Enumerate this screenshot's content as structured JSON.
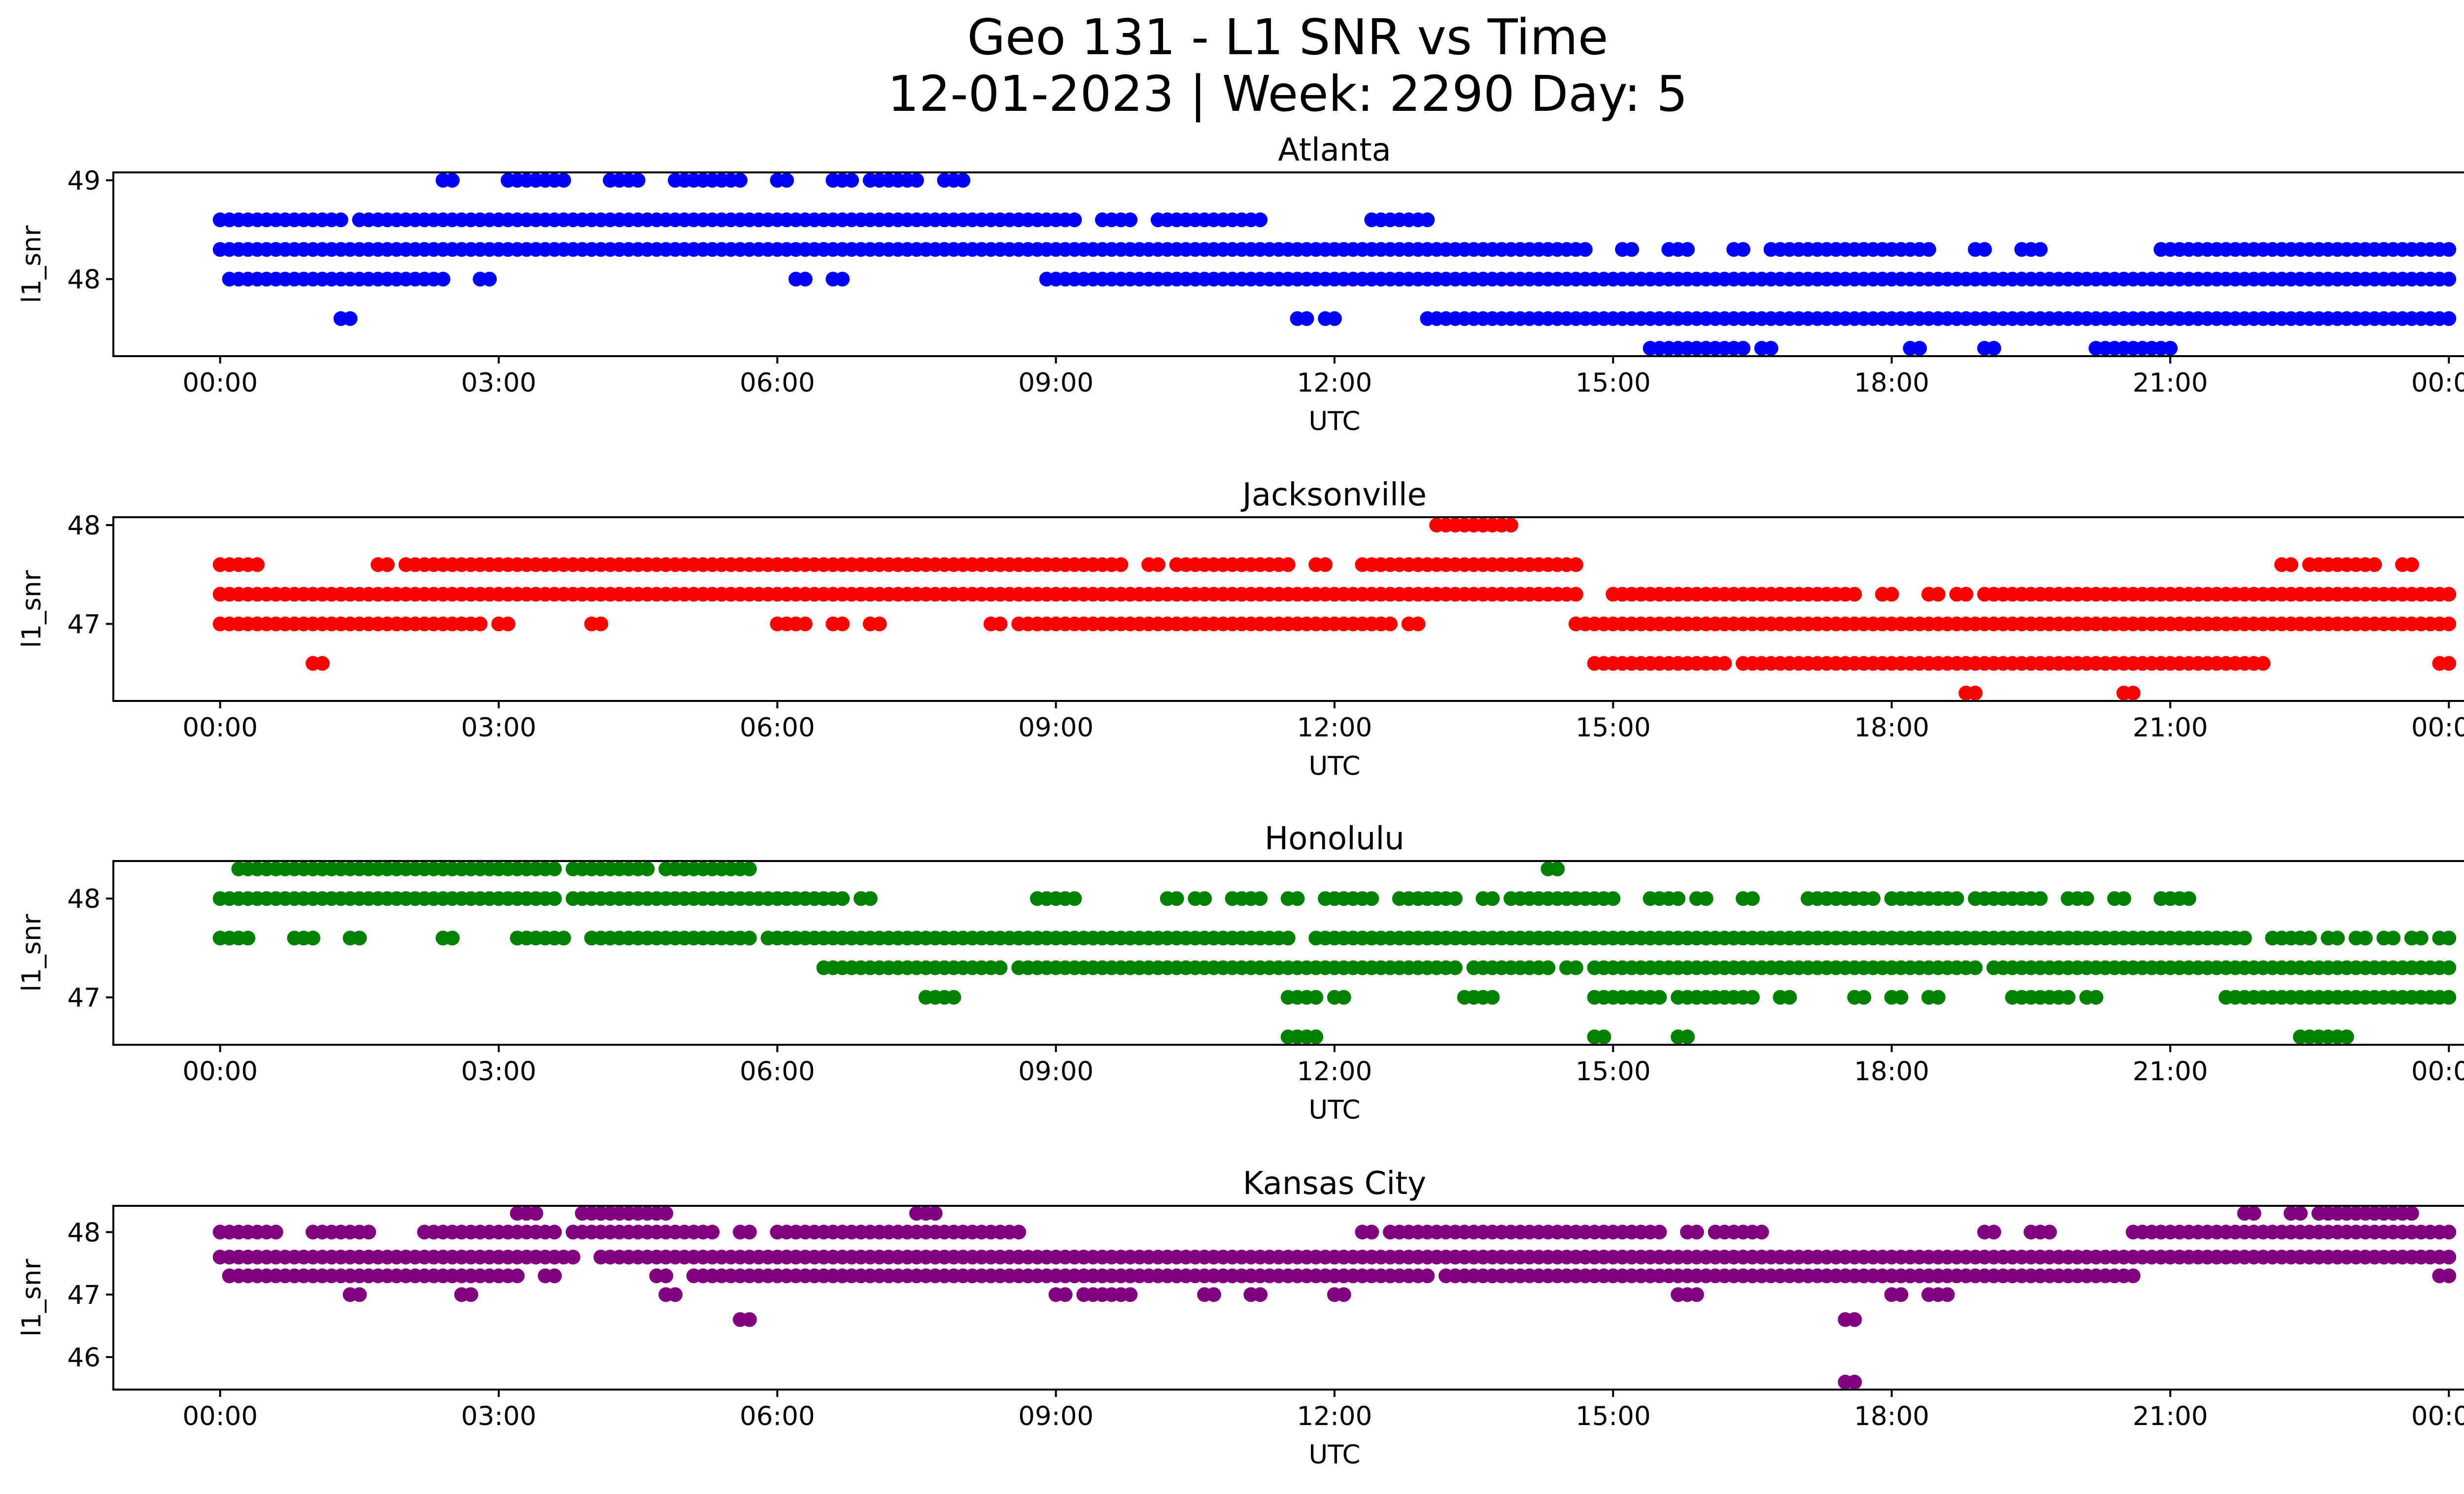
{
  "figure": {
    "title_line1": "Geo 131 - L1 SNR vs Time",
    "title_line2": "12-01-2023 | Week: 2290 Day: 5"
  },
  "chart_data": [
    {
      "type": "scatter",
      "title": "Atlanta",
      "xlabel": "UTC",
      "ylabel": "l1_snr",
      "color": "#0000ff",
      "xlim": [
        -1.15,
        25.15
      ],
      "ylim": [
        47.22,
        49.08
      ],
      "xticks": [
        "00:00",
        "03:00",
        "06:00",
        "09:00",
        "12:00",
        "15:00",
        "18:00",
        "21:00",
        "00:00"
      ],
      "yticks": [
        48,
        49
      ],
      "y_levels": [
        47.3,
        47.6,
        48.0,
        48.3,
        48.6,
        49.0
      ],
      "series": [
        {
          "y": 49.0,
          "segments": [
            [
              2.4,
              2.5
            ],
            [
              3.1,
              3.4
            ],
            [
              3.5,
              3.7
            ],
            [
              4.2,
              4.5
            ],
            [
              4.9,
              5.6
            ],
            [
              6.0,
              6.1
            ],
            [
              6.6,
              6.8
            ],
            [
              7.0,
              7.5
            ],
            [
              7.8,
              8.0
            ]
          ]
        },
        {
          "y": 48.6,
          "segments": [
            [
              0.0,
              1.3
            ],
            [
              1.5,
              3.7
            ],
            [
              3.8,
              9.2
            ],
            [
              9.5,
              9.8
            ],
            [
              10.1,
              11.2
            ],
            [
              12.4,
              13.0
            ]
          ]
        },
        {
          "y": 48.3,
          "segments": [
            [
              0.0,
              3.7
            ],
            [
              3.8,
              14.7
            ],
            [
              15.1,
              15.2
            ],
            [
              15.6,
              15.8
            ],
            [
              16.3,
              16.4
            ],
            [
              16.7,
              17.5
            ],
            [
              17.6,
              18.4
            ],
            [
              18.9,
              19.0
            ],
            [
              19.4,
              19.6
            ],
            [
              20.9,
              24.0
            ]
          ]
        },
        {
          "y": 48.0,
          "segments": [
            [
              0.1,
              1.8
            ],
            [
              1.9,
              2.4
            ],
            [
              2.8,
              2.9
            ],
            [
              6.2,
              6.3
            ],
            [
              6.6,
              6.7
            ],
            [
              8.9,
              9.0
            ],
            [
              9.1,
              24.0
            ]
          ]
        },
        {
          "y": 47.6,
          "segments": [
            [
              1.3,
              1.4
            ],
            [
              11.6,
              11.7
            ],
            [
              11.9,
              12.0
            ],
            [
              13.0,
              24.0
            ]
          ]
        },
        {
          "y": 47.3,
          "segments": [
            [
              15.4,
              16.4
            ],
            [
              16.6,
              16.7
            ],
            [
              18.2,
              18.3
            ],
            [
              19.0,
              19.1
            ],
            [
              20.2,
              21.0
            ]
          ]
        }
      ]
    },
    {
      "type": "scatter",
      "title": "Jacksonville",
      "xlabel": "UTC",
      "ylabel": "l1_snr",
      "color": "#ff0000",
      "xlim": [
        -1.15,
        25.15
      ],
      "ylim": [
        46.22,
        48.08
      ],
      "xticks": [
        "00:00",
        "03:00",
        "06:00",
        "09:00",
        "12:00",
        "15:00",
        "18:00",
        "21:00",
        "00:00"
      ],
      "yticks": [
        47,
        48
      ],
      "y_levels": [
        46.3,
        46.6,
        47.0,
        47.3,
        47.6,
        48.0
      ],
      "series": [
        {
          "y": 48.0,
          "segments": [
            [
              13.1,
              13.4
            ],
            [
              13.5,
              13.9
            ]
          ]
        },
        {
          "y": 47.6,
          "segments": [
            [
              0.0,
              0.2
            ],
            [
              0.3,
              0.4
            ],
            [
              1.7,
              1.8
            ],
            [
              2.0,
              3.7
            ],
            [
              3.8,
              9.3
            ],
            [
              9.4,
              9.7
            ],
            [
              10.0,
              10.1
            ],
            [
              10.3,
              10.5
            ],
            [
              10.6,
              11.5
            ],
            [
              11.8,
              11.9
            ],
            [
              12.3,
              14.6
            ],
            [
              22.2,
              22.3
            ],
            [
              22.5,
              22.7
            ],
            [
              22.8,
              23.0
            ],
            [
              23.1,
              23.2
            ],
            [
              23.5,
              23.6
            ]
          ]
        },
        {
          "y": 47.3,
          "segments": [
            [
              0.0,
              3.7
            ],
            [
              3.8,
              14.6
            ],
            [
              15.0,
              17.4
            ],
            [
              17.5,
              17.6
            ],
            [
              17.9,
              18.0
            ],
            [
              18.4,
              18.5
            ],
            [
              18.7,
              18.8
            ],
            [
              19.0,
              24.0
            ]
          ]
        },
        {
          "y": 47.0,
          "segments": [
            [
              0.0,
              2.8
            ],
            [
              3.0,
              3.1
            ],
            [
              4.0,
              4.1
            ],
            [
              6.0,
              6.3
            ],
            [
              6.6,
              6.7
            ],
            [
              7.0,
              7.1
            ],
            [
              8.3,
              8.4
            ],
            [
              8.6,
              12.6
            ],
            [
              12.8,
              12.9
            ],
            [
              14.6,
              24.0
            ]
          ]
        },
        {
          "y": 46.6,
          "segments": [
            [
              1.0,
              1.1
            ],
            [
              14.8,
              16.2
            ],
            [
              16.4,
              20.0
            ],
            [
              20.1,
              22.0
            ],
            [
              23.9,
              24.0
            ]
          ]
        },
        {
          "y": 46.3,
          "segments": [
            [
              18.8,
              18.9
            ],
            [
              20.5,
              20.6
            ]
          ]
        }
      ]
    },
    {
      "type": "scatter",
      "title": "Honolulu",
      "xlabel": "UTC",
      "ylabel": "l1_snr",
      "color": "#008000",
      "xlim": [
        -1.15,
        25.15
      ],
      "ylim": [
        46.52,
        48.38
      ],
      "xticks": [
        "00:00",
        "03:00",
        "06:00",
        "09:00",
        "12:00",
        "15:00",
        "18:00",
        "21:00",
        "00:00"
      ],
      "yticks": [
        47,
        48
      ],
      "y_levels": [
        46.6,
        47.0,
        47.3,
        47.6,
        48.0,
        48.3
      ],
      "series": [
        {
          "y": 48.3,
          "segments": [
            [
              0.2,
              3.6
            ],
            [
              3.8,
              4.6
            ],
            [
              4.8,
              5.7
            ],
            [
              14.3,
              14.4
            ]
          ]
        },
        {
          "y": 48.0,
          "segments": [
            [
              0.0,
              3.6
            ],
            [
              3.8,
              6.7
            ],
            [
              6.9,
              7.0
            ],
            [
              8.8,
              9.2
            ],
            [
              10.2,
              10.3
            ],
            [
              10.5,
              10.6
            ],
            [
              10.9,
              11.2
            ],
            [
              11.5,
              11.6
            ],
            [
              11.9,
              12.1
            ],
            [
              12.2,
              12.4
            ],
            [
              12.7,
              13.3
            ],
            [
              13.6,
              13.7
            ],
            [
              13.9,
              14.7
            ],
            [
              14.8,
              15.0
            ],
            [
              15.4,
              15.7
            ],
            [
              15.9,
              16.0
            ],
            [
              16.4,
              16.5
            ],
            [
              17.1,
              17.6
            ],
            [
              17.7,
              17.8
            ],
            [
              18.0,
              18.5
            ],
            [
              18.6,
              18.7
            ],
            [
              18.9,
              19.6
            ],
            [
              19.9,
              20.1
            ],
            [
              20.4,
              20.5
            ],
            [
              20.9,
              21.2
            ]
          ]
        },
        {
          "y": 47.6,
          "segments": [
            [
              0.0,
              0.3
            ],
            [
              0.8,
              1.0
            ],
            [
              1.4,
              1.5
            ],
            [
              2.4,
              2.5
            ],
            [
              3.2,
              3.5
            ],
            [
              3.6,
              3.7
            ],
            [
              4.0,
              4.3
            ],
            [
              4.4,
              5.2
            ],
            [
              5.3,
              5.4
            ],
            [
              5.5,
              5.7
            ],
            [
              5.9,
              11.5
            ],
            [
              11.8,
              21.8
            ],
            [
              22.1,
              22.2
            ],
            [
              22.3,
              22.5
            ],
            [
              22.7,
              22.8
            ],
            [
              23.0,
              23.1
            ],
            [
              23.3,
              23.4
            ],
            [
              23.6,
              23.7
            ],
            [
              23.9,
              24.0
            ]
          ]
        },
        {
          "y": 47.3,
          "segments": [
            [
              6.5,
              8.4
            ],
            [
              8.6,
              13.3
            ],
            [
              13.5,
              14.3
            ],
            [
              14.5,
              14.6
            ],
            [
              14.8,
              18.9
            ],
            [
              19.1,
              24.0
            ]
          ]
        },
        {
          "y": 47.0,
          "segments": [
            [
              7.6,
              7.7
            ],
            [
              7.8,
              7.9
            ],
            [
              11.5,
              11.8
            ],
            [
              12.0,
              12.1
            ],
            [
              13.4,
              13.5
            ],
            [
              13.6,
              13.7
            ],
            [
              14.8,
              15.5
            ],
            [
              15.7,
              16.5
            ],
            [
              16.8,
              16.9
            ],
            [
              17.6,
              17.7
            ],
            [
              18.0,
              18.1
            ],
            [
              18.4,
              18.5
            ],
            [
              19.3,
              19.9
            ],
            [
              20.1,
              20.2
            ],
            [
              21.6,
              24.0
            ]
          ]
        },
        {
          "y": 46.6,
          "segments": [
            [
              11.5,
              11.8
            ],
            [
              14.8,
              14.9
            ],
            [
              15.7,
              15.8
            ],
            [
              22.4,
              22.9
            ]
          ]
        }
      ]
    },
    {
      "type": "scatter",
      "title": "Kansas City",
      "xlabel": "UTC",
      "ylabel": "l1_snr",
      "color": "#800080",
      "xlim": [
        -1.15,
        25.15
      ],
      "ylim": [
        45.48,
        48.42
      ],
      "xticks": [
        "00:00",
        "03:00",
        "06:00",
        "09:00",
        "12:00",
        "15:00",
        "18:00",
        "21:00",
        "00:00"
      ],
      "yticks": [
        46,
        47,
        48
      ],
      "y_levels": [
        45.6,
        46.6,
        47.0,
        47.3,
        47.6,
        48.0,
        48.3
      ],
      "series": [
        {
          "y": 48.3,
          "segments": [
            [
              3.2,
              3.4
            ],
            [
              3.9,
              4.4
            ],
            [
              4.5,
              4.8
            ],
            [
              7.5,
              7.7
            ],
            [
              21.8,
              21.9
            ],
            [
              22.3,
              22.4
            ],
            [
              22.6,
              23.2
            ],
            [
              23.3,
              23.6
            ]
          ]
        },
        {
          "y": 48.0,
          "segments": [
            [
              0.0,
              0.3
            ],
            [
              0.4,
              0.6
            ],
            [
              1.0,
              1.3
            ],
            [
              1.4,
              1.6
            ],
            [
              2.2,
              2.5
            ],
            [
              2.6,
              3.6
            ],
            [
              3.8,
              5.3
            ],
            [
              5.6,
              5.7
            ],
            [
              6.0,
              6.5
            ],
            [
              6.6,
              7.2
            ],
            [
              7.3,
              8.4
            ],
            [
              8.5,
              8.6
            ],
            [
              12.3,
              12.4
            ],
            [
              12.6,
              13.0
            ],
            [
              13.1,
              14.7
            ],
            [
              14.8,
              15.0
            ],
            [
              15.1,
              15.3
            ],
            [
              15.4,
              15.5
            ],
            [
              15.8,
              15.9
            ],
            [
              16.1,
              16.6
            ],
            [
              19.0,
              19.1
            ],
            [
              19.5,
              19.7
            ],
            [
              20.6,
              24.0
            ]
          ]
        },
        {
          "y": 47.6,
          "segments": [
            [
              0.0,
              3.6
            ],
            [
              3.7,
              3.8
            ],
            [
              4.1,
              24.0
            ]
          ]
        },
        {
          "y": 47.3,
          "segments": [
            [
              0.1,
              2.6
            ],
            [
              2.7,
              3.2
            ],
            [
              3.5,
              3.6
            ],
            [
              4.7,
              4.8
            ],
            [
              5.1,
              5.3
            ],
            [
              5.4,
              6.1
            ],
            [
              6.2,
              7.2
            ],
            [
              7.3,
              8.7
            ],
            [
              8.8,
              12.8
            ],
            [
              12.9,
              13.0
            ],
            [
              13.2,
              13.4
            ],
            [
              13.5,
              13.6
            ],
            [
              13.7,
              20.6
            ],
            [
              23.9,
              24.0
            ]
          ]
        },
        {
          "y": 47.0,
          "segments": [
            [
              1.4,
              1.5
            ],
            [
              2.6,
              2.7
            ],
            [
              4.8,
              4.9
            ],
            [
              9.0,
              9.1
            ],
            [
              9.3,
              9.8
            ],
            [
              10.6,
              10.7
            ],
            [
              11.1,
              11.2
            ],
            [
              12.0,
              12.1
            ],
            [
              15.7,
              15.9
            ],
            [
              18.0,
              18.1
            ],
            [
              18.4,
              18.6
            ]
          ]
        },
        {
          "y": 46.6,
          "segments": [
            [
              5.6,
              5.7
            ],
            [
              17.5,
              17.6
            ]
          ]
        },
        {
          "y": 45.6,
          "segments": [
            [
              17.5,
              17.6
            ]
          ]
        }
      ]
    }
  ]
}
